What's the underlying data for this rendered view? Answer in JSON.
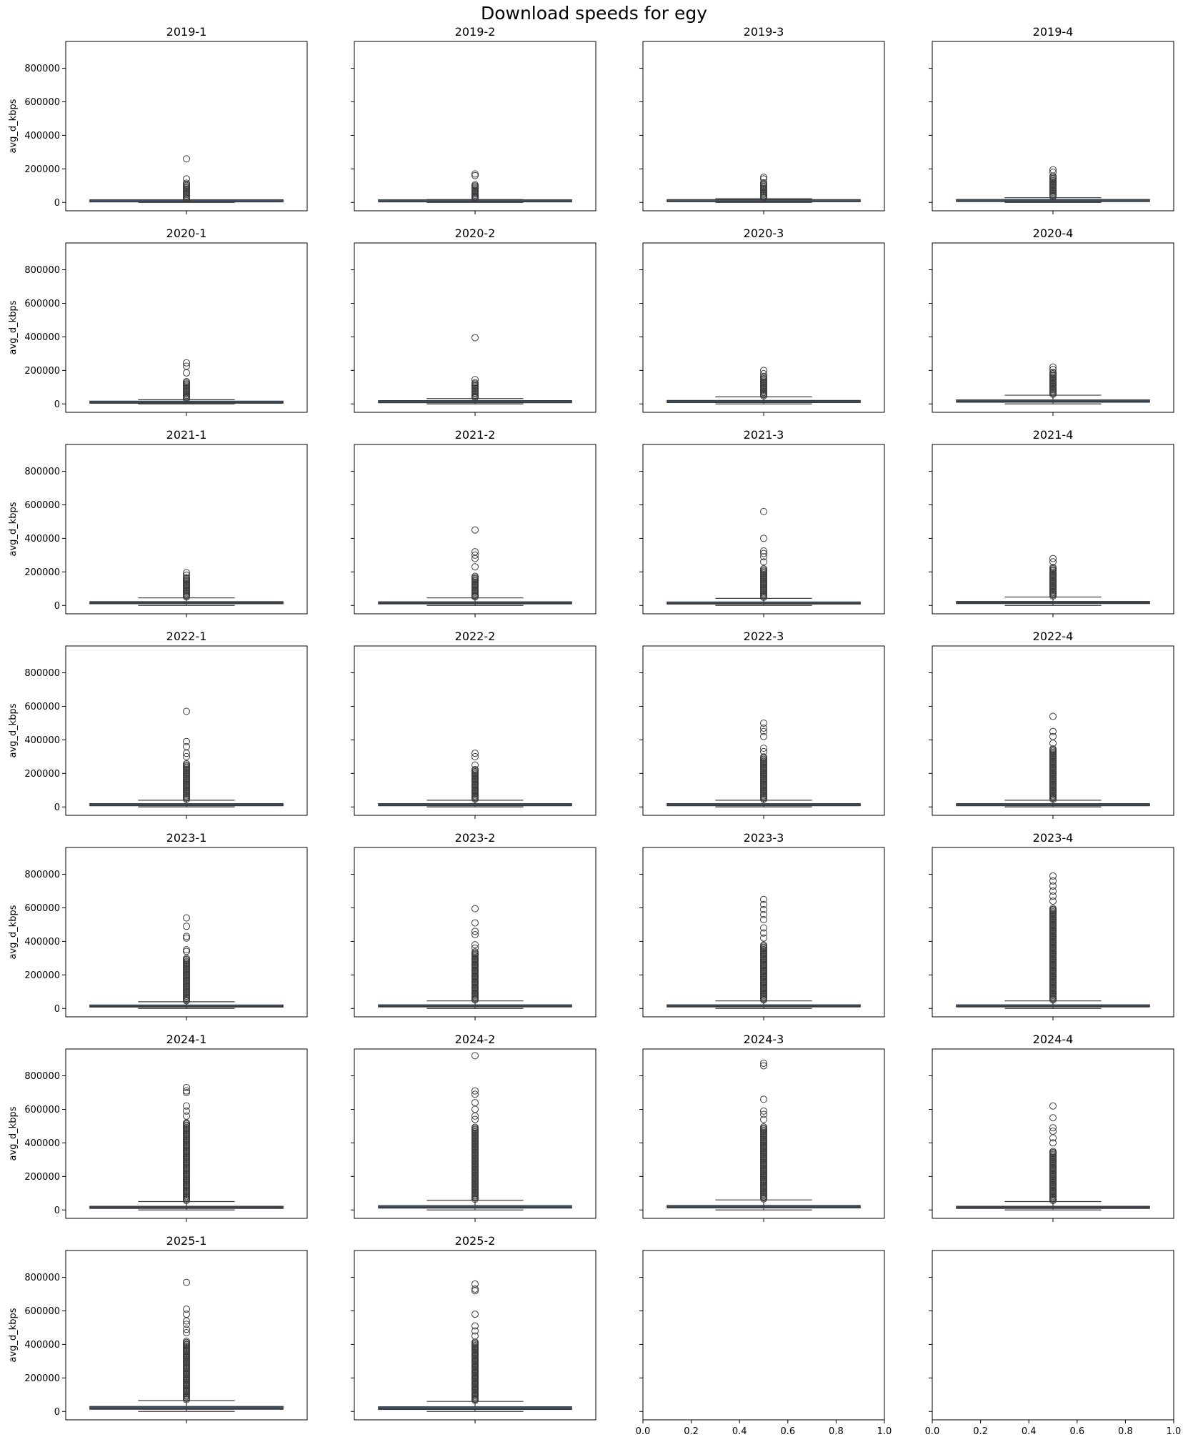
{
  "figure": {
    "title": "Download speeds for egy"
  },
  "style": {
    "box_fill": "#3b5a7a",
    "line": "#3a3a3a",
    "frame": "#000000"
  },
  "chart_data": {
    "type": "box",
    "layout": {
      "rows": 7,
      "cols": 4,
      "sharey": true
    },
    "ylabel": "avg_d_kbps",
    "ylim": [
      -50000,
      960000
    ],
    "yticks": [
      0,
      200000,
      400000,
      600000,
      800000
    ],
    "yticklabels": [
      "0",
      "200000",
      "400000",
      "600000",
      "800000"
    ],
    "empty_xticks": [
      0.0,
      0.2,
      0.4,
      0.6,
      0.8,
      1.0
    ],
    "empty_xticklabels": [
      "0.0",
      "0.2",
      "0.4",
      "0.6",
      "0.8",
      "1.0"
    ],
    "panels": [
      {
        "title": "2019-1",
        "q1": 3000,
        "median": 5000,
        "q3": 7000,
        "whisker_low": 0,
        "whisker_high": 13000,
        "outlier_dense_max": 120000,
        "outliers": [
          140000,
          260000
        ]
      },
      {
        "title": "2019-2",
        "q1": 3000,
        "median": 5500,
        "q3": 8000,
        "whisker_low": 0,
        "whisker_high": 17000,
        "outlier_dense_max": 110000,
        "outliers": [
          160000,
          170000
        ]
      },
      {
        "title": "2019-3",
        "q1": 4000,
        "median": 6000,
        "q3": 9000,
        "whisker_low": 0,
        "whisker_high": 22000,
        "outlier_dense_max": 120000,
        "outliers": [
          140000,
          150000
        ]
      },
      {
        "title": "2019-4",
        "q1": 5000,
        "median": 8000,
        "q3": 12000,
        "whisker_low": 0,
        "whisker_high": 28000,
        "outlier_dense_max": 160000,
        "outliers": [
          180000,
          195000
        ]
      },
      {
        "title": "2020-1",
        "q1": 4000,
        "median": 7000,
        "q3": 11000,
        "whisker_low": 0,
        "whisker_high": 25000,
        "outlier_dense_max": 140000,
        "outliers": [
          185000,
          225000,
          245000
        ]
      },
      {
        "title": "2020-2",
        "q1": 7000,
        "median": 10000,
        "q3": 14000,
        "whisker_low": 0,
        "whisker_high": 32000,
        "outlier_dense_max": 130000,
        "outliers": [
          145000,
          395000
        ]
      },
      {
        "title": "2020-3",
        "q1": 8000,
        "median": 12000,
        "q3": 18000,
        "whisker_low": 0,
        "whisker_high": 42000,
        "outlier_dense_max": 170000,
        "outliers": [
          180000,
          200000
        ]
      },
      {
        "title": "2020-4",
        "q1": 10000,
        "median": 16000,
        "q3": 24000,
        "whisker_low": 0,
        "whisker_high": 52000,
        "outlier_dense_max": 190000,
        "outliers": [
          205000,
          220000
        ]
      },
      {
        "title": "2021-1",
        "q1": 10000,
        "median": 15000,
        "q3": 22000,
        "whisker_low": 0,
        "whisker_high": 45000,
        "outlier_dense_max": 170000,
        "outliers": [
          180000,
          195000
        ]
      },
      {
        "title": "2021-2",
        "q1": 9000,
        "median": 14000,
        "q3": 21000,
        "whisker_low": 0,
        "whisker_high": 45000,
        "outlier_dense_max": 180000,
        "outliers": [
          230000,
          280000,
          300000,
          320000,
          450000
        ]
      },
      {
        "title": "2021-3",
        "q1": 8000,
        "median": 12000,
        "q3": 18000,
        "whisker_low": 0,
        "whisker_high": 42000,
        "outlier_dense_max": 220000,
        "outliers": [
          260000,
          290000,
          310000,
          325000,
          400000,
          560000
        ]
      },
      {
        "title": "2021-4",
        "q1": 11000,
        "median": 16000,
        "q3": 23000,
        "whisker_low": 0,
        "whisker_high": 50000,
        "outlier_dense_max": 230000,
        "outliers": [
          260000,
          280000
        ]
      },
      {
        "title": "2022-1",
        "q1": 7000,
        "median": 11000,
        "q3": 16000,
        "whisker_low": 0,
        "whisker_high": 40000,
        "outlier_dense_max": 260000,
        "outliers": [
          300000,
          320000,
          360000,
          390000,
          570000
        ]
      },
      {
        "title": "2022-2",
        "q1": 7000,
        "median": 11000,
        "q3": 16000,
        "whisker_low": 0,
        "whisker_high": 40000,
        "outlier_dense_max": 230000,
        "outliers": [
          250000,
          300000,
          320000
        ]
      },
      {
        "title": "2022-3",
        "q1": 7000,
        "median": 11000,
        "q3": 16000,
        "whisker_low": 0,
        "whisker_high": 40000,
        "outlier_dense_max": 300000,
        "outliers": [
          330000,
          350000,
          420000,
          450000,
          470000,
          500000
        ]
      },
      {
        "title": "2022-4",
        "q1": 7000,
        "median": 11000,
        "q3": 16000,
        "whisker_low": 0,
        "whisker_high": 40000,
        "outlier_dense_max": 350000,
        "outliers": [
          380000,
          420000,
          450000,
          540000
        ]
      },
      {
        "title": "2023-1",
        "q1": 8000,
        "median": 12000,
        "q3": 18000,
        "whisker_low": 0,
        "whisker_high": 40000,
        "outlier_dense_max": 300000,
        "outliers": [
          340000,
          350000,
          420000,
          430000,
          490000,
          540000
        ]
      },
      {
        "title": "2023-2",
        "q1": 9000,
        "median": 13000,
        "q3": 20000,
        "whisker_low": 0,
        "whisker_high": 45000,
        "outlier_dense_max": 340000,
        "outliers": [
          360000,
          380000,
          440000,
          460000,
          510000,
          595000
        ]
      },
      {
        "title": "2023-3",
        "q1": 9000,
        "median": 13000,
        "q3": 20000,
        "whisker_low": 0,
        "whisker_high": 45000,
        "outlier_dense_max": 380000,
        "outliers": [
          420000,
          450000,
          480000,
          530000,
          560000,
          590000,
          620000,
          650000
        ]
      },
      {
        "title": "2023-4",
        "q1": 9000,
        "median": 13000,
        "q3": 20000,
        "whisker_low": 0,
        "whisker_high": 45000,
        "outlier_dense_max": 600000,
        "outliers": [
          640000,
          670000,
          700000,
          730000,
          760000,
          790000
        ]
      },
      {
        "title": "2024-1",
        "q1": 9000,
        "median": 14000,
        "q3": 22000,
        "whisker_low": 0,
        "whisker_high": 50000,
        "outlier_dense_max": 520000,
        "outliers": [
          560000,
          590000,
          620000,
          700000,
          710000,
          730000
        ]
      },
      {
        "title": "2024-2",
        "q1": 11000,
        "median": 17000,
        "q3": 26000,
        "whisker_low": 0,
        "whisker_high": 58000,
        "outlier_dense_max": 500000,
        "outliers": [
          540000,
          560000,
          600000,
          640000,
          690000,
          710000,
          920000
        ]
      },
      {
        "title": "2024-3",
        "q1": 12000,
        "median": 18000,
        "q3": 27000,
        "whisker_low": 0,
        "whisker_high": 60000,
        "outlier_dense_max": 500000,
        "outliers": [
          540000,
          570000,
          590000,
          660000,
          860000,
          875000
        ]
      },
      {
        "title": "2024-4",
        "q1": 9000,
        "median": 14000,
        "q3": 22000,
        "whisker_low": 0,
        "whisker_high": 50000,
        "outlier_dense_max": 350000,
        "outliers": [
          400000,
          430000,
          470000,
          490000,
          550000,
          620000
        ]
      },
      {
        "title": "2025-1",
        "q1": 13000,
        "median": 20000,
        "q3": 30000,
        "whisker_low": 0,
        "whisker_high": 65000,
        "outlier_dense_max": 420000,
        "outliers": [
          470000,
          490000,
          520000,
          540000,
          580000,
          610000,
          770000
        ]
      },
      {
        "title": "2025-2",
        "q1": 12000,
        "median": 19000,
        "q3": 28000,
        "whisker_low": 0,
        "whisker_high": 60000,
        "outlier_dense_max": 420000,
        "outliers": [
          450000,
          480000,
          510000,
          580000,
          720000,
          730000,
          760000
        ]
      }
    ]
  }
}
